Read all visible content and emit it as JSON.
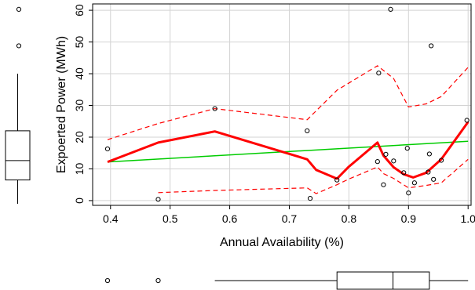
{
  "chart_data": {
    "type": "scatter",
    "title": "",
    "xlabel": "Annual Availability (%)",
    "ylabel": "Expoerted Power (MWh)",
    "xlim": [
      0.37,
      1.005
    ],
    "ylim": [
      -1.5,
      62
    ],
    "xticks": [
      0.4,
      0.5,
      0.6,
      0.7,
      0.8,
      0.9,
      1.0
    ],
    "xtick_labels": [
      "0.4",
      "0.5",
      "0.6",
      "0.7",
      "0.8",
      "0.9",
      "1.0"
    ],
    "yticks": [
      0,
      10,
      20,
      30,
      40,
      50,
      60
    ],
    "ytick_labels": [
      "0",
      "10",
      "20",
      "30",
      "40",
      "50",
      "60"
    ],
    "grid": true,
    "legend": "none",
    "points": [
      {
        "x": 0.395,
        "y": 16.3
      },
      {
        "x": 0.48,
        "y": 0.4
      },
      {
        "x": 0.575,
        "y": 29.0
      },
      {
        "x": 0.73,
        "y": 22.0
      },
      {
        "x": 0.735,
        "y": 0.7
      },
      {
        "x": 0.78,
        "y": 6.5
      },
      {
        "x": 0.848,
        "y": 12.3
      },
      {
        "x": 0.85,
        "y": 40.2
      },
      {
        "x": 0.858,
        "y": 5.0
      },
      {
        "x": 0.862,
        "y": 14.6
      },
      {
        "x": 0.87,
        "y": 60.3
      },
      {
        "x": 0.875,
        "y": 12.5
      },
      {
        "x": 0.892,
        "y": 8.8
      },
      {
        "x": 0.898,
        "y": 16.5
      },
      {
        "x": 0.9,
        "y": 2.4
      },
      {
        "x": 0.91,
        "y": 5.6
      },
      {
        "x": 0.933,
        "y": 9.0
      },
      {
        "x": 0.935,
        "y": 14.7
      },
      {
        "x": 0.938,
        "y": 48.8
      },
      {
        "x": 0.942,
        "y": 6.7
      },
      {
        "x": 0.955,
        "y": 12.7
      },
      {
        "x": 0.998,
        "y": 25.3
      }
    ],
    "linear_fit": {
      "x": [
        0.395,
        1.0
      ],
      "y": [
        12.2,
        18.7
      ]
    },
    "smooth_fit": {
      "x": [
        0.395,
        0.48,
        0.575,
        0.73,
        0.745,
        0.78,
        0.8,
        0.848,
        0.858,
        0.875,
        0.892,
        0.908,
        0.93,
        0.955,
        1.0
      ],
      "y": [
        12.2,
        18.3,
        21.8,
        13.0,
        9.7,
        6.9,
        10.7,
        18.3,
        14.2,
        10.5,
        8.3,
        7.3,
        8.8,
        13.0,
        24.8
      ]
    },
    "upper_band": {
      "x": [
        0.395,
        0.48,
        0.575,
        0.73,
        0.78,
        0.848,
        0.875,
        0.9,
        0.93,
        0.955,
        1.0
      ],
      "y": [
        19.2,
        24.3,
        29.0,
        25.5,
        34.8,
        42.5,
        38.5,
        29.5,
        30.5,
        32.8,
        42.0
      ]
    },
    "lower_band": {
      "x": [
        0.48,
        0.575,
        0.73,
        0.745,
        0.78,
        0.8,
        0.848,
        0.858,
        0.875,
        0.9,
        0.93,
        0.955,
        1.0
      ],
      "y": [
        2.5,
        3.2,
        4.0,
        2.2,
        5.0,
        6.8,
        10.6,
        8.5,
        7.0,
        4.0,
        4.8,
        5.6,
        13.0
      ]
    },
    "y_boxplot": {
      "whisker_low": -1.0,
      "q1": 6.5,
      "median": 12.6,
      "q3": 22.0,
      "whisker_high": 40.0,
      "outliers": [
        48.8,
        60.3
      ]
    },
    "x_boxplot": {
      "whisker_low": 0.575,
      "q1": 0.78,
      "median": 0.874,
      "q3": 0.935,
      "whisker_high": 1.0,
      "outliers": [
        0.395,
        0.48
      ]
    },
    "colors": {
      "smooth": "#ff0000",
      "bands": "#ff0000",
      "linear": "#00cc00",
      "points": "#000000",
      "grid": "#d3d3d3",
      "frame": "#000000"
    }
  }
}
